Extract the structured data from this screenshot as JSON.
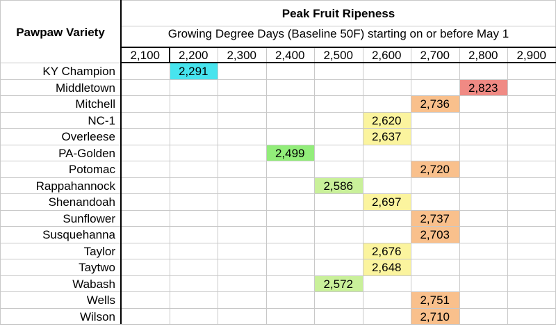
{
  "table": {
    "row_header": "Pawpaw Variety",
    "title": "Peak Fruit Ripeness",
    "subtitle": "Growing Degree Days (Baseline 50F) starting on or before May 1"
  },
  "colors": {
    "cyan": "#47e4ee",
    "red": "#f08a84",
    "orange": "#f9c08c",
    "yellow": "#fbf49e",
    "green": "#92ed7a",
    "light_green": "#c9f09a"
  },
  "chart_data": {
    "type": "table",
    "columns": [
      "2,100",
      "2,200",
      "2,300",
      "2,400",
      "2,500",
      "2,600",
      "2,700",
      "2,800",
      "2,900"
    ],
    "rows": [
      {
        "variety": "KY Champion",
        "gdd": 2291,
        "label": "2,291",
        "col": 1,
        "color": "#47e4ee"
      },
      {
        "variety": "Middletown",
        "gdd": 2823,
        "label": "2,823",
        "col": 7,
        "color": "#f08a84"
      },
      {
        "variety": "Mitchell",
        "gdd": 2736,
        "label": "2,736",
        "col": 6,
        "color": "#f9c08c"
      },
      {
        "variety": "NC-1",
        "gdd": 2620,
        "label": "2,620",
        "col": 5,
        "color": "#fbf49e"
      },
      {
        "variety": "Overleese",
        "gdd": 2637,
        "label": "2,637",
        "col": 5,
        "color": "#fbf49e"
      },
      {
        "variety": "PA-Golden",
        "gdd": 2499,
        "label": "2,499",
        "col": 3,
        "color": "#92ed7a"
      },
      {
        "variety": "Potomac",
        "gdd": 2720,
        "label": "2,720",
        "col": 6,
        "color": "#f9c08c"
      },
      {
        "variety": "Rappahannock",
        "gdd": 2586,
        "label": "2,586",
        "col": 4,
        "color": "#c9f09a"
      },
      {
        "variety": "Shenandoah",
        "gdd": 2697,
        "label": "2,697",
        "col": 5,
        "color": "#fbf49e"
      },
      {
        "variety": "Sunflower",
        "gdd": 2737,
        "label": "2,737",
        "col": 6,
        "color": "#f9c08c"
      },
      {
        "variety": "Susquehanna",
        "gdd": 2703,
        "label": "2,703",
        "col": 6,
        "color": "#f9c08c"
      },
      {
        "variety": "Taylor",
        "gdd": 2676,
        "label": "2,676",
        "col": 5,
        "color": "#fbf49e"
      },
      {
        "variety": "Taytwo",
        "gdd": 2648,
        "label": "2,648",
        "col": 5,
        "color": "#fbf49e"
      },
      {
        "variety": "Wabash",
        "gdd": 2572,
        "label": "2,572",
        "col": 4,
        "color": "#c9f09a"
      },
      {
        "variety": "Wells",
        "gdd": 2751,
        "label": "2,751",
        "col": 6,
        "color": "#f9c08c"
      },
      {
        "variety": "Wilson",
        "gdd": 2710,
        "label": "2,710",
        "col": 6,
        "color": "#f9c08c"
      }
    ]
  }
}
